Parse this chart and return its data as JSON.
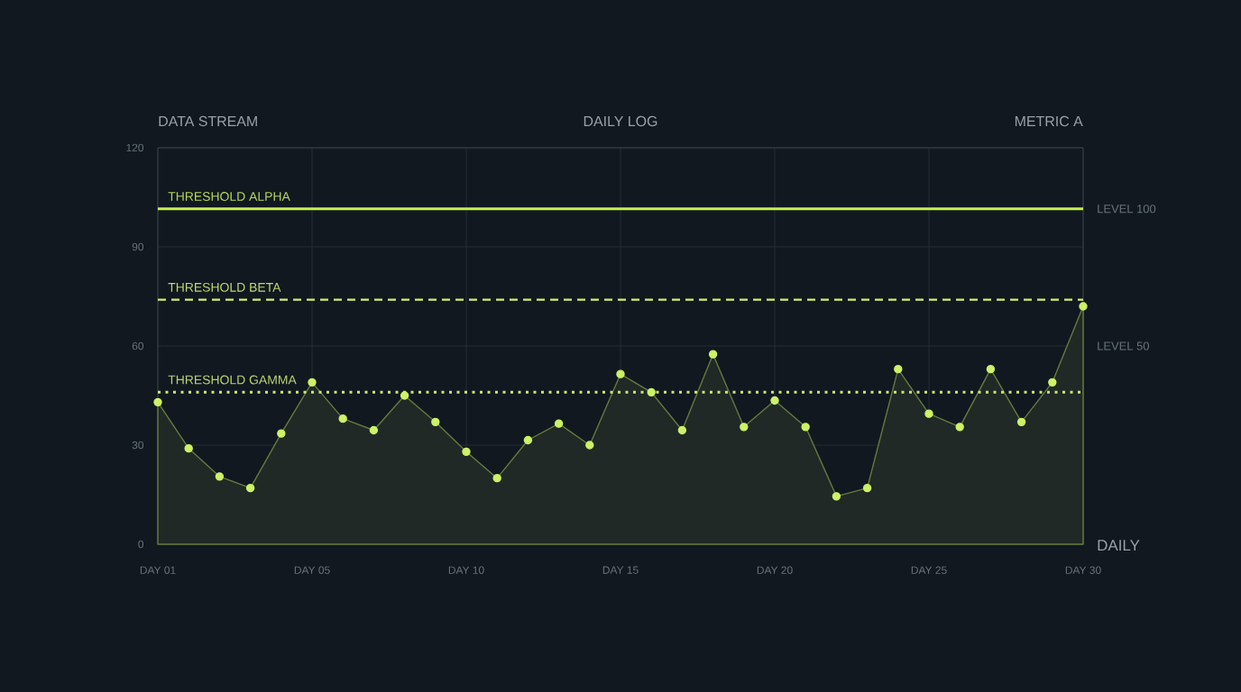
{
  "chart_data": {
    "type": "area",
    "title": "DAILY LOG",
    "ylabel": "DATA STREAM",
    "y2label": "METRIC A",
    "xlabel": "DAILY",
    "categories": [
      "DAY 01",
      null,
      null,
      null,
      null,
      "DAY 05",
      null,
      null,
      null,
      null,
      "DAY 10",
      null,
      null,
      null,
      null,
      "DAY 15",
      null,
      null,
      null,
      null,
      "DAY 20",
      null,
      null,
      null,
      null,
      "DAY 25",
      null,
      null,
      null,
      null,
      "DAY 30"
    ],
    "series": [
      {
        "color": "#cdf266",
        "values": [
          43,
          29,
          20.5,
          17,
          33.5,
          49,
          38,
          34.5,
          45,
          37,
          28,
          20,
          31.5,
          36.5,
          30,
          51.5,
          46,
          34.5,
          57.5,
          35.5,
          43.5,
          35.5,
          14.5,
          17,
          53,
          39.5,
          35.5,
          53,
          37,
          49,
          72
        ]
      }
    ],
    "ylim": [
      0,
      120
    ],
    "yticks": [
      0,
      30,
      60,
      90,
      120
    ],
    "ref_lines": [
      {
        "axis": "y",
        "value": 101.5,
        "label": "THRESHOLD ALPHA",
        "color": "#c4f153",
        "line_style": "solid"
      },
      {
        "axis": "y",
        "value": 74,
        "label": "THRESHOLD BETA",
        "color": "#d2ef6c",
        "line_style": "dashed"
      },
      {
        "axis": "y",
        "value": 46,
        "label": "THRESHOLD GAMMA",
        "color": "#cde870",
        "line_style": "dotted"
      }
    ],
    "annotations": [
      "LEVEL 100",
      "LEVEL 50"
    ],
    "grid": true,
    "marker": "circle",
    "line_style": "solid"
  }
}
